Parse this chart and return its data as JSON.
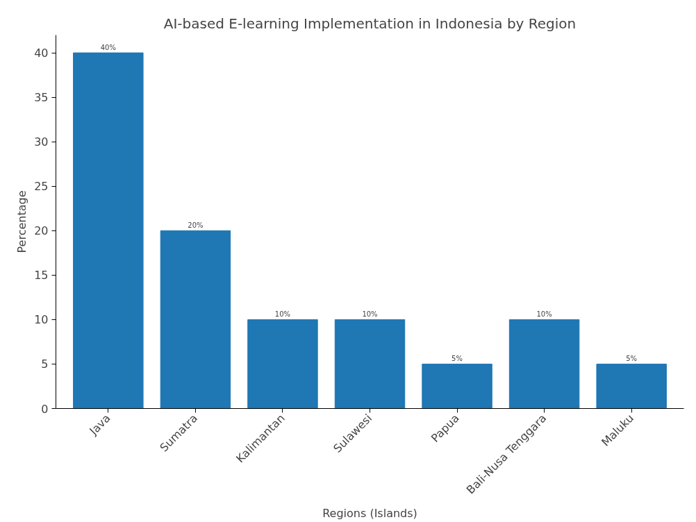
{
  "chart_data": {
    "type": "bar",
    "title": "AI-based E-learning Implementation in Indonesia by Region",
    "xlabel": "Regions (Islands)",
    "ylabel": "Percentage",
    "categories": [
      "Java",
      "Sumatra",
      "Kalimantan",
      "Sulawesi",
      "Papua",
      "Bali-Nusa Tenggara",
      "Maluku"
    ],
    "values": [
      40,
      20,
      10,
      10,
      5,
      10,
      5
    ],
    "value_labels": [
      "40%",
      "20%",
      "10%",
      "10%",
      "5%",
      "10%",
      "5%"
    ],
    "color": "#1f77b4",
    "ylim": [
      0,
      42
    ],
    "yticks": [
      0,
      5,
      10,
      15,
      20,
      25,
      30,
      35,
      40
    ],
    "grid": false
  }
}
